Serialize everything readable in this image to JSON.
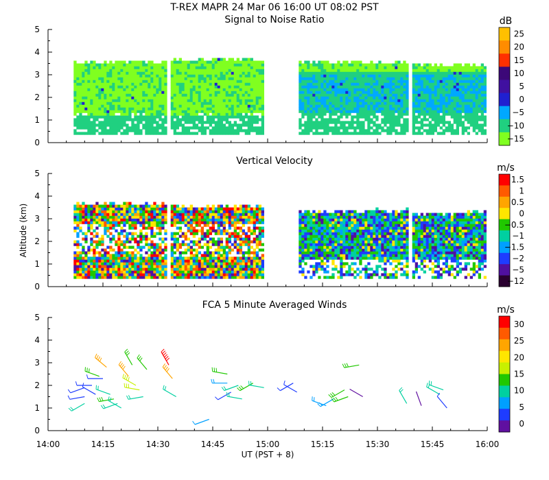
{
  "header": {
    "title": "T-REX   MAPR 24 Mar 06   16:00 UT   08:02   PST"
  },
  "shared": {
    "xlabel": "UT  (PST + 8)",
    "ylabel": "Altitude (km)",
    "x_ticks": [
      "14:00",
      "14:15",
      "14:30",
      "14:45",
      "15:00",
      "15:15",
      "15:30",
      "15:45",
      "16:00"
    ],
    "y_ticks": [
      "0",
      "1",
      "2",
      "3",
      "4",
      "5"
    ]
  },
  "chart_data": [
    {
      "type": "heatmap",
      "title": "Signal to Noise Ratio",
      "xlabel": "UT  (PST + 8)",
      "ylabel": "",
      "x_range_minutes": [
        0,
        120
      ],
      "ylim": [
        0,
        5
      ],
      "colorbar": {
        "unit": "dB",
        "ticks": [
          "25",
          "20",
          "15",
          "10",
          "5",
          "0",
          "−5",
          "−10",
          "−15"
        ],
        "colors": [
          "#FFC000",
          "#FF8C00",
          "#FF3000",
          "#3C0878",
          "#4010A0",
          "#2020D0",
          "#00A8FF",
          "#20D080",
          "#80FF20"
        ]
      },
      "segments": [
        {
          "start_min": 7,
          "end_min": 57,
          "top_km": 3.5,
          "bottom_km": 0.3,
          "dominant": "#80FF20"
        },
        {
          "start_min": 68.5,
          "end_min": 98,
          "top_km": 3.6,
          "bottom_km": 0.3,
          "dominant": "#20D080"
        }
      ]
    },
    {
      "type": "heatmap",
      "title": "Vertical Velocity",
      "xlabel": "UT  (PST + 8)",
      "ylabel": "Altitude (km)",
      "x_range_minutes": [
        0,
        120
      ],
      "ylim": [
        0,
        5
      ],
      "colorbar": {
        "unit": "m/s",
        "ticks": [
          "1.5",
          "1",
          "0.5",
          "0",
          "−0.5",
          "−1",
          "−1.5",
          "−2",
          "−5",
          "−12"
        ],
        "colors": [
          "#FF0000",
          "#FF5A00",
          "#FFA500",
          "#FFE600",
          "#20C800",
          "#00D0A0",
          "#00A0FF",
          "#1E3CFF",
          "#5010A0",
          "#2A0030"
        ]
      },
      "segments": [
        {
          "start_min": 7,
          "end_min": 57,
          "top_km": 3.6,
          "bottom_km": 0.3,
          "dominant": "#FFE600"
        },
        {
          "start_min": 68.5,
          "end_min": 98,
          "top_km": 3.5,
          "bottom_km": 0.3,
          "dominant": "#1E3CFF"
        }
      ]
    },
    {
      "type": "scatter",
      "title": "FCA 5 Minute Averaged Winds",
      "xlabel": "UT  (PST + 8)",
      "ylabel": "",
      "x_range_minutes": [
        0,
        120
      ],
      "ylim": [
        0,
        5
      ],
      "colorbar": {
        "unit": "m/s",
        "ticks": [
          "30",
          "25",
          "20",
          "15",
          "10",
          "5",
          "0"
        ],
        "colors": [
          "#FF0000",
          "#FF5A00",
          "#FFA500",
          "#FFE600",
          "#C8F000",
          "#20C800",
          "#00D0A0",
          "#00A0FF",
          "#1E3CFF",
          "#6010A0"
        ]
      },
      "barbs": [
        {
          "t": 10,
          "alt": 1.2,
          "dir": 240,
          "speed": 12
        },
        {
          "t": 10,
          "alt": 1.5,
          "dir": 260,
          "speed": 6
        },
        {
          "t": 10,
          "alt": 1.9,
          "dir": 250,
          "speed": 4
        },
        {
          "t": 12,
          "alt": 2.0,
          "dir": 270,
          "speed": 5
        },
        {
          "t": 13,
          "alt": 1.6,
          "dir": 300,
          "speed": 6
        },
        {
          "t": 14,
          "alt": 2.4,
          "dir": 290,
          "speed": 14
        },
        {
          "t": 15,
          "alt": 2.3,
          "dir": 270,
          "speed": 5
        },
        {
          "t": 16,
          "alt": 2.8,
          "dir": 310,
          "speed": 22
        },
        {
          "t": 17,
          "alt": 1.6,
          "dir": 290,
          "speed": 12
        },
        {
          "t": 18,
          "alt": 1.4,
          "dir": 260,
          "speed": 13
        },
        {
          "t": 19,
          "alt": 1.2,
          "dir": 250,
          "speed": 12
        },
        {
          "t": 20,
          "alt": 1.0,
          "dir": 300,
          "speed": 10
        },
        {
          "t": 22,
          "alt": 2.4,
          "dir": 320,
          "speed": 22
        },
        {
          "t": 23,
          "alt": 2.9,
          "dir": 330,
          "speed": 15
        },
        {
          "t": 24,
          "alt": 2.0,
          "dir": 300,
          "speed": 18
        },
        {
          "t": 25,
          "alt": 1.8,
          "dir": 280,
          "speed": 17
        },
        {
          "t": 26,
          "alt": 1.5,
          "dir": 260,
          "speed": 10
        },
        {
          "t": 27,
          "alt": 2.7,
          "dir": 320,
          "speed": 15
        },
        {
          "t": 33,
          "alt": 2.9,
          "dir": 330,
          "speed": 28
        },
        {
          "t": 34,
          "alt": 2.3,
          "dir": 320,
          "speed": 22
        },
        {
          "t": 35,
          "alt": 1.5,
          "dir": 300,
          "speed": 12
        },
        {
          "t": 44,
          "alt": 0.5,
          "dir": 250,
          "speed": 7
        },
        {
          "t": 49,
          "alt": 2.5,
          "dir": 280,
          "speed": 14
        },
        {
          "t": 49,
          "alt": 2.1,
          "dir": 270,
          "speed": 9
        },
        {
          "t": 50,
          "alt": 1.7,
          "dir": 240,
          "speed": 6
        },
        {
          "t": 52,
          "alt": 2.0,
          "dir": 250,
          "speed": 12
        },
        {
          "t": 53,
          "alt": 1.4,
          "dir": 280,
          "speed": 11
        },
        {
          "t": 56,
          "alt": 2.1,
          "dir": 240,
          "speed": 14
        },
        {
          "t": 59,
          "alt": 1.9,
          "dir": 280,
          "speed": 10
        },
        {
          "t": 67,
          "alt": 2.1,
          "dir": 240,
          "speed": 6
        },
        {
          "t": 68,
          "alt": 1.7,
          "dir": 300,
          "speed": 6
        },
        {
          "t": 76,
          "alt": 1.1,
          "dir": 290,
          "speed": 9
        },
        {
          "t": 78,
          "alt": 1.4,
          "dir": 240,
          "speed": 8
        },
        {
          "t": 81,
          "alt": 1.8,
          "dir": 240,
          "speed": 14
        },
        {
          "t": 82,
          "alt": 1.5,
          "dir": 250,
          "speed": 15
        },
        {
          "t": 85,
          "alt": 2.9,
          "dir": 260,
          "speed": 13
        },
        {
          "t": 86,
          "alt": 1.5,
          "dir": 300,
          "speed": 2
        },
        {
          "t": 98,
          "alt": 1.2,
          "dir": 330,
          "speed": 10
        },
        {
          "t": 102,
          "alt": 1.1,
          "dir": 340,
          "speed": 2
        },
        {
          "t": 107,
          "alt": 1.6,
          "dir": 300,
          "speed": 12
        },
        {
          "t": 108,
          "alt": 1.8,
          "dir": 290,
          "speed": 11
        },
        {
          "t": 109,
          "alt": 1.0,
          "dir": 320,
          "speed": 6
        }
      ]
    }
  ]
}
